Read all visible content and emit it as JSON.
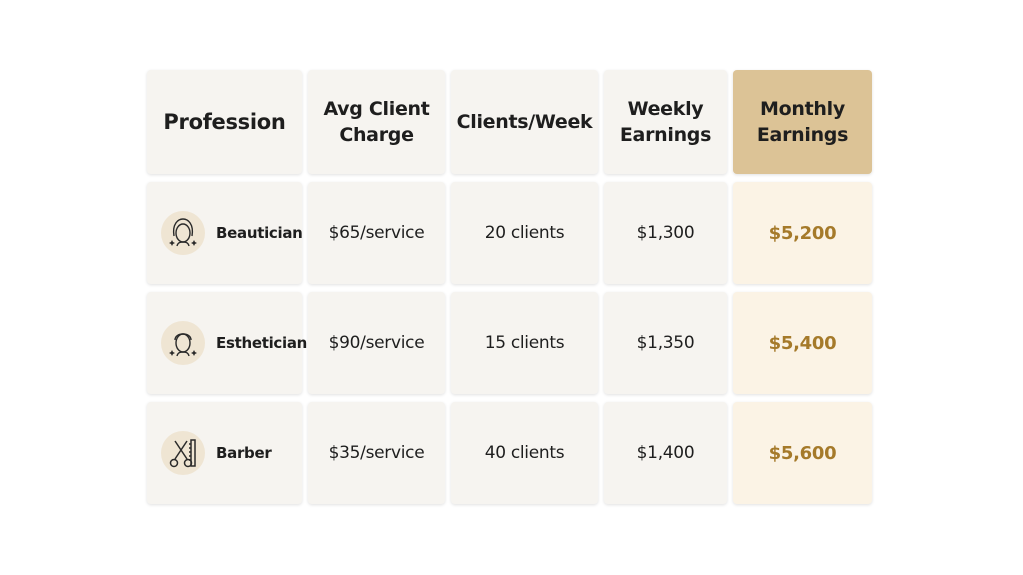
{
  "table": {
    "header": [
      "Profession",
      "Avg Client Charge",
      "Clients/Week",
      "Weekly Earnings",
      "Monthly Earnings"
    ],
    "rows": [
      [
        "Beautician",
        "$65/service",
        "20 clients",
        "$1,300",
        "$5,200"
      ],
      [
        "Esthetician",
        "$90/service",
        "15 clients",
        "$1,350",
        "$5,400"
      ],
      [
        "Barber",
        "$35/service",
        "40 clients",
        "$1,400",
        "$5,600"
      ]
    ]
  }
}
